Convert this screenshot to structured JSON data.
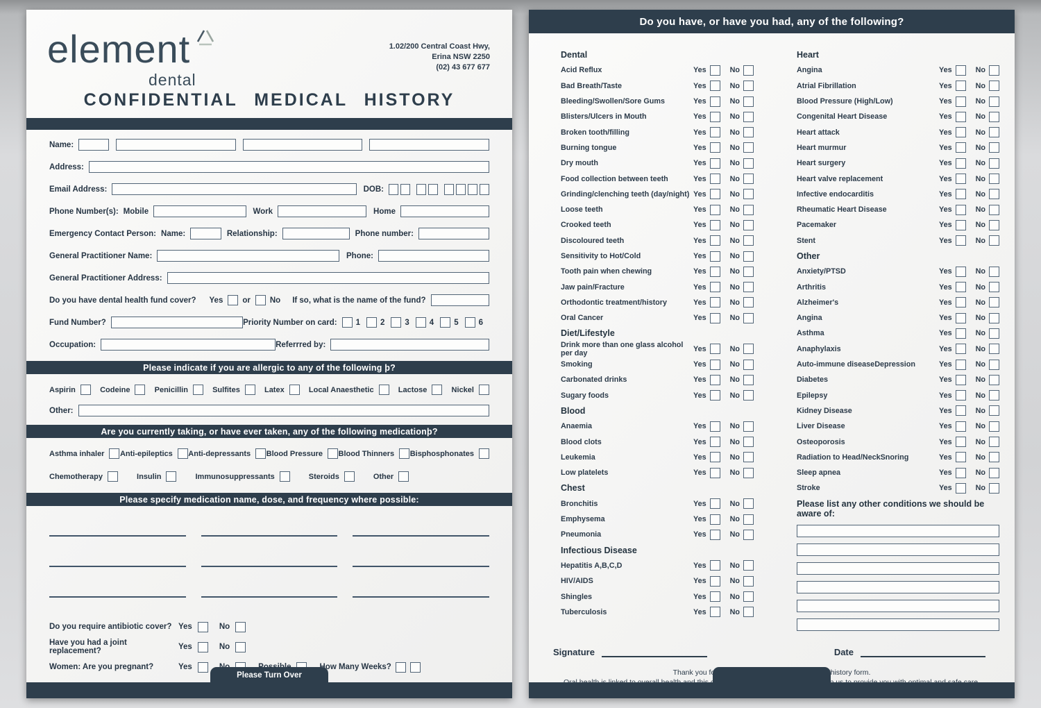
{
  "page1": {
    "clinic": {
      "brand": "element",
      "brand_sub": "dental",
      "address_line1": "1.02/200 Central Coast Hwy,",
      "address_line2": "Erina NSW 2250",
      "address_line3": "(02) 43 677 677"
    },
    "title": "CONFIDENTIAL MEDICAL HISTORY",
    "labels": {
      "name": "Name:",
      "address": "Address:",
      "email": "Email Address:",
      "dob": "DOB:",
      "phones": "Phone Number(s):",
      "mobile": "Mobile",
      "work": "Work",
      "home": "Home",
      "emergency": "Emergency Contact Person:",
      "em_name": "Name:",
      "relationship": "Relationship:",
      "phone_number": "Phone number:",
      "gp_name": "General Practitioner Name:",
      "gp_phone": "Phone:",
      "gp_address": "General Practitioner Address:",
      "fund_q": "Do you have dental health fund cover?",
      "yes": "Yes",
      "or": "or",
      "no": "No",
      "fund_name_q": "If so, what is the name of the fund?",
      "fund_number": "Fund Number?",
      "priority": "Priority Number on card:",
      "occupation": "Occupation:",
      "referred": "Referrred by:"
    },
    "priority_numbers": [
      "1",
      "2",
      "3",
      "4",
      "5",
      "6"
    ],
    "allergy_section": {
      "title": "Please indicate if  you are allergic to any of the following þ?",
      "items": [
        "Aspirin",
        "Codeine",
        "Penicillin",
        "Sulfites",
        "Latex",
        "Local Anaesthetic",
        "Lactose",
        "Nickel"
      ],
      "other_label": "Other:"
    },
    "medication_section": {
      "title": "Are you currently taking, or have ever taken, any of the following medicationþ?",
      "row1": [
        "Asthma inhaler",
        "Anti-epileptics",
        "Anti-depressants",
        "Blood Pressure",
        "Blood Thinners",
        "Bisphosphonates"
      ],
      "row2": [
        "Chemotherapy",
        "Insulin",
        "Immunosuppressants",
        "Steroids",
        "Other"
      ]
    },
    "specify_title": "Please specify medication name, dose, and frequency where possible:",
    "questions": {
      "q1": "Do you require antibiotic cover?",
      "q2": "Have you had a joint replacement?",
      "q3": "Women:  Are you pregnant?",
      "yes": "Yes",
      "no": "No",
      "possible": "Possible",
      "weeks": "How Many Weeks?"
    },
    "footer_tab": "Please Turn Over"
  },
  "page2": {
    "header": "Do you have, or have you had, any of the following?",
    "yes": "Yes",
    "no": "No",
    "left_sections": [
      {
        "title": "Dental",
        "items": [
          "Acid Reflux",
          "Bad Breath/Taste",
          "Bleeding/Swollen/Sore Gums",
          "Blisters/Ulcers in Mouth",
          "Broken tooth/filling",
          "Burning tongue",
          "Dry mouth",
          "Food collection between teeth",
          "Grinding/clenching teeth (day/night)",
          "Loose teeth",
          "Crooked teeth",
          "Discoloured teeth",
          "Sensitivity to Hot/Cold",
          "Tooth pain when chewing",
          "Jaw pain/Fracture",
          "Orthodontic treatment/history",
          "Oral Cancer"
        ]
      },
      {
        "title": "Diet/Lifestyle",
        "items": [
          "Drink more than one glass alcohol per day",
          "Smoking",
          "Carbonated drinks",
          "Sugary foods"
        ]
      },
      {
        "title": "Blood",
        "items": [
          "Anaemia",
          "Blood clots",
          "Leukemia",
          "Low platelets"
        ]
      },
      {
        "title": "Chest",
        "items": [
          "Bronchitis",
          "Emphysema",
          "Pneumonia"
        ]
      },
      {
        "title": "Infectious Disease",
        "items": [
          "Hepatitis A,B,C,D",
          "HIV/AIDS",
          "Shingles",
          "Tuberculosis"
        ]
      }
    ],
    "right_sections": [
      {
        "title": "Heart",
        "items": [
          "Angina",
          "Atrial Fibrillation",
          "Blood Pressure (High/Low)",
          "Congenital Heart Disease",
          "Heart attack",
          "Heart murmur",
          "Heart surgery",
          "Heart valve replacement",
          "Infective endocarditis",
          "Rheumatic Heart Disease",
          "Pacemaker",
          "Stent"
        ]
      },
      {
        "title": "Other",
        "items": [
          "Anxiety/PTSD",
          "Arthritis",
          "Alzheimer's",
          "Angina",
          "Asthma",
          "Anaphylaxis",
          "Auto-immune diseaseDepression",
          "Diabetes",
          "Epilepsy",
          "Kidney Disease",
          "Liver Disease",
          "Osteoporosis",
          "Radiation to Head/NeckSnoring",
          "Sleep apnea",
          "Stroke"
        ]
      }
    ],
    "other_conditions_label": "Please list any other conditions we should be aware of:",
    "signature_label": "Signature",
    "date_label": "Date",
    "thanks_line1": "Thank you for the time to complete your medical history form.",
    "thanks_line2": "Oral health is linked to overall health and this comprehensive questionnaire will help us to provide you with optimal and safe care."
  },
  "colors": {
    "bar": "#2e3e4c",
    "text": "#263544",
    "box_border": "#516476"
  }
}
